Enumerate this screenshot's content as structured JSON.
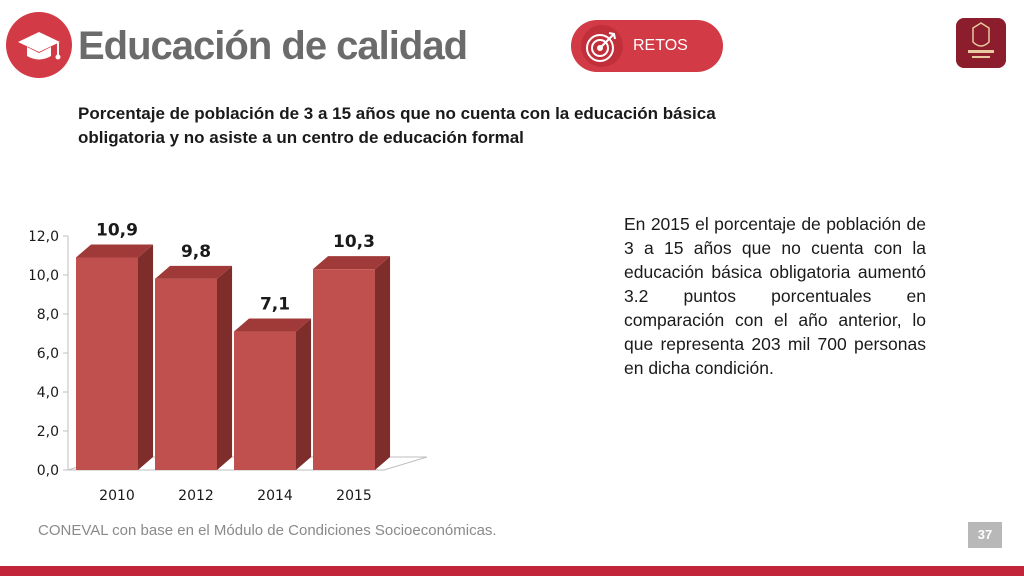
{
  "header": {
    "title": "Educación de calidad",
    "badge_label": "RETOS",
    "icons": [
      "graduation-cap-icon",
      "target-icon",
      "jalisco-logo"
    ]
  },
  "subtitle": "Porcentaje de población de 3 a 15 años que no cuenta con la educación básica obligatoria y no asiste a un centro de educación formal",
  "description": "En 2015 el porcentaje de población de 3 a 15 años que no cuenta con la educación básica obligatoria aumentó 3.2 puntos porcentuales en comparación con el año anterior, lo que representa 203 mil 700 personas en dicha condición.",
  "source": "CONEVAL con base en el Módulo de Condiciones Socioeconómicas.",
  "page_number": "37",
  "colors": {
    "accent": "#d23a45",
    "bar_front": "#c0504d",
    "bar_side": "#7f2d2b",
    "bottom_bar": "#c2253a"
  },
  "chart_data": {
    "type": "bar",
    "categories": [
      "2010",
      "2012",
      "2014",
      "2015"
    ],
    "values": [
      10.9,
      9.8,
      7.1,
      10.3
    ],
    "value_labels": [
      "10,9",
      "9,8",
      "7,1",
      "10,3"
    ],
    "y_ticks": [
      "0,0",
      "2,0",
      "4,0",
      "6,0",
      "8,0",
      "10,0",
      "12,0"
    ],
    "ylim": [
      0,
      12
    ],
    "title": "",
    "xlabel": "",
    "ylabel": "",
    "grid": false,
    "style": "3d-column"
  }
}
